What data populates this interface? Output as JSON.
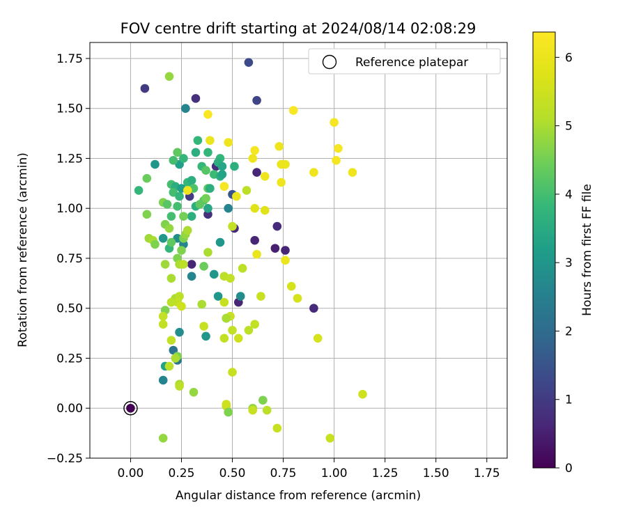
{
  "chart_data": {
    "type": "scatter",
    "title": "FOV centre drift starting at 2024/08/14 02:08:29",
    "xlabel": "Angular distance from reference (arcmin)",
    "ylabel": "Rotation from reference (arcmin)",
    "xlim": [
      -0.2,
      1.85
    ],
    "ylim": [
      -0.25,
      1.83
    ],
    "xticks": [
      0.0,
      0.25,
      0.5,
      0.75,
      1.0,
      1.25,
      1.5,
      1.75
    ],
    "xtick_labels": [
      "0.00",
      "0.25",
      "0.50",
      "0.75",
      "1.00",
      "1.25",
      "1.50",
      "1.75"
    ],
    "yticks": [
      -0.25,
      0.0,
      0.25,
      0.5,
      0.75,
      1.0,
      1.25,
      1.5,
      1.75
    ],
    "ytick_labels": [
      "−0.25",
      "0.00",
      "0.25",
      "0.50",
      "0.75",
      "1.00",
      "1.25",
      "1.50",
      "1.75"
    ],
    "grid": true,
    "legend": {
      "position": "top-right",
      "entries": [
        "Reference platepar"
      ]
    },
    "reference_point": {
      "x": 0.0,
      "y": 0.0,
      "marker": "open-circle",
      "color": "#000000"
    },
    "colorbar": {
      "label": "Hours from first FF file",
      "min": 0,
      "max": 6.37,
      "ticks": [
        0,
        1,
        2,
        3,
        4,
        5,
        6
      ],
      "tick_labels": [
        "0",
        "1",
        "2",
        "3",
        "4",
        "5",
        "6"
      ],
      "colormap": "viridis"
    },
    "points": [
      [
        0.0,
        0.0,
        0.0
      ],
      [
        0.07,
        1.6,
        1.0
      ],
      [
        0.58,
        1.73,
        1.3
      ],
      [
        0.32,
        1.55,
        0.8
      ],
      [
        0.62,
        1.54,
        1.2
      ],
      [
        0.27,
        1.5,
        2.4
      ],
      [
        0.27,
        1.5,
        2.6
      ],
      [
        0.19,
        1.66,
        4.8
      ],
      [
        0.62,
        1.18,
        0.6
      ],
      [
        0.72,
        0.91,
        0.7
      ],
      [
        0.76,
        0.79,
        0.6
      ],
      [
        0.71,
        0.8,
        0.5
      ],
      [
        0.61,
        0.84,
        0.6
      ],
      [
        0.9,
        0.5,
        0.7
      ],
      [
        0.53,
        0.53,
        0.6
      ],
      [
        0.51,
        0.9,
        0.7
      ],
      [
        0.38,
        0.97,
        0.8
      ],
      [
        0.3,
        0.72,
        0.6
      ],
      [
        0.42,
        1.21,
        0.8
      ],
      [
        0.29,
        1.06,
        1.0
      ],
      [
        0.5,
        1.07,
        1.5
      ],
      [
        0.23,
        0.24,
        2.2
      ],
      [
        0.21,
        0.29,
        2.2
      ],
      [
        0.16,
        0.14,
        2.6
      ],
      [
        0.17,
        0.21,
        3.3
      ],
      [
        0.24,
        0.38,
        2.8
      ],
      [
        0.47,
        0.45,
        2.8
      ],
      [
        0.37,
        0.36,
        3.0
      ],
      [
        0.43,
        0.56,
        3.0
      ],
      [
        0.54,
        0.56,
        2.8
      ],
      [
        0.44,
        0.83,
        3.0
      ],
      [
        0.41,
        0.67,
        3.0
      ],
      [
        0.3,
        0.66,
        2.6
      ],
      [
        0.26,
        0.82,
        2.6
      ],
      [
        0.23,
        0.85,
        2.8
      ],
      [
        0.16,
        0.85,
        3.0
      ],
      [
        0.12,
        1.22,
        3.0
      ],
      [
        0.48,
        1.0,
        2.6
      ],
      [
        0.24,
        1.22,
        3.2
      ],
      [
        0.32,
        1.28,
        3.6
      ],
      [
        0.33,
        1.34,
        3.8
      ],
      [
        0.38,
        1.28,
        3.8
      ],
      [
        0.26,
        1.25,
        3.8
      ],
      [
        0.21,
        1.24,
        4.0
      ],
      [
        0.23,
        1.28,
        4.3
      ],
      [
        0.44,
        1.25,
        3.8
      ],
      [
        0.43,
        1.23,
        3.6
      ],
      [
        0.45,
        1.21,
        3.4
      ],
      [
        0.35,
        1.21,
        3.8
      ],
      [
        0.37,
        1.19,
        4.2
      ],
      [
        0.41,
        1.17,
        3.9
      ],
      [
        0.44,
        1.16,
        3.6
      ],
      [
        0.45,
        1.17,
        3.3
      ],
      [
        0.51,
        1.21,
        3.6
      ],
      [
        0.28,
        1.13,
        3.8
      ],
      [
        0.3,
        1.14,
        3.6
      ],
      [
        0.2,
        1.12,
        4.0
      ],
      [
        0.22,
        1.11,
        3.6
      ],
      [
        0.25,
        1.1,
        3.2
      ],
      [
        0.21,
        1.08,
        4.0
      ],
      [
        0.24,
        1.06,
        3.8
      ],
      [
        0.31,
        1.1,
        4.1
      ],
      [
        0.38,
        1.1,
        4.3
      ],
      [
        0.39,
        1.1,
        3.6
      ],
      [
        0.36,
        1.04,
        4.2
      ],
      [
        0.37,
        1.05,
        4.5
      ],
      [
        0.38,
        1.0,
        3.4
      ],
      [
        0.32,
        1.01,
        3.6
      ],
      [
        0.3,
        0.96,
        3.6
      ],
      [
        0.34,
        1.02,
        4.3
      ],
      [
        0.26,
        0.96,
        4.5
      ],
      [
        0.23,
        1.01,
        4.0
      ],
      [
        0.2,
        0.96,
        4.0
      ],
      [
        0.16,
        1.03,
        4.6
      ],
      [
        0.18,
        1.02,
        4.2
      ],
      [
        0.04,
        1.09,
        3.8
      ],
      [
        0.08,
        1.15,
        4.4
      ],
      [
        0.08,
        0.97,
        4.6
      ],
      [
        0.17,
        0.92,
        4.6
      ],
      [
        0.19,
        0.9,
        4.8
      ],
      [
        0.09,
        0.85,
        4.9
      ],
      [
        0.11,
        0.84,
        5.0
      ],
      [
        0.12,
        0.82,
        4.6
      ],
      [
        0.19,
        0.8,
        3.8
      ],
      [
        0.2,
        0.83,
        4.3
      ],
      [
        0.23,
        0.75,
        4.6
      ],
      [
        0.25,
        0.79,
        4.6
      ],
      [
        0.26,
        0.85,
        4.6
      ],
      [
        0.27,
        0.87,
        4.8
      ],
      [
        0.28,
        0.89,
        5.0
      ],
      [
        0.17,
        0.72,
        4.9
      ],
      [
        0.2,
        0.65,
        5.0
      ],
      [
        0.24,
        0.72,
        5.0
      ],
      [
        0.26,
        0.72,
        5.2
      ],
      [
        0.36,
        0.71,
        4.4
      ],
      [
        0.38,
        0.78,
        5.0
      ],
      [
        0.46,
        0.66,
        5.2
      ],
      [
        0.49,
        0.65,
        5.3
      ],
      [
        0.55,
        0.7,
        5.2
      ],
      [
        0.46,
        0.53,
        5.4
      ],
      [
        0.49,
        0.46,
        5.4
      ],
      [
        0.47,
        0.45,
        5.0
      ],
      [
        0.35,
        0.52,
        5.0
      ],
      [
        0.22,
        0.55,
        5.0
      ],
      [
        0.24,
        0.56,
        5.2
      ],
      [
        0.23,
        0.53,
        5.3
      ],
      [
        0.25,
        0.51,
        5.5
      ],
      [
        0.2,
        0.53,
        5.2
      ],
      [
        0.17,
        0.49,
        4.6
      ],
      [
        0.16,
        0.46,
        5.3
      ],
      [
        0.16,
        0.42,
        5.3
      ],
      [
        0.2,
        0.34,
        5.3
      ],
      [
        0.23,
        0.26,
        4.6
      ],
      [
        0.22,
        0.25,
        5.0
      ],
      [
        0.19,
        0.21,
        5.2
      ],
      [
        0.24,
        0.12,
        5.0
      ],
      [
        0.24,
        0.11,
        5.2
      ],
      [
        0.31,
        0.08,
        4.8
      ],
      [
        0.16,
        -0.15,
        4.8
      ],
      [
        0.36,
        0.41,
        5.4
      ],
      [
        0.46,
        0.35,
        5.3
      ],
      [
        0.5,
        0.39,
        5.3
      ],
      [
        0.53,
        0.35,
        5.5
      ],
      [
        0.58,
        0.39,
        5.2
      ],
      [
        0.61,
        0.42,
        5.3
      ],
      [
        0.64,
        0.56,
        5.4
      ],
      [
        0.5,
        0.18,
        5.4
      ],
      [
        0.47,
        0.01,
        5.3
      ],
      [
        0.47,
        0.02,
        5.5
      ],
      [
        0.48,
        -0.02,
        4.6
      ],
      [
        0.6,
        0.0,
        4.8
      ],
      [
        0.6,
        -0.01,
        5.4
      ],
      [
        0.65,
        0.04,
        4.6
      ],
      [
        0.67,
        -0.01,
        5.2
      ],
      [
        0.72,
        -0.1,
        5.4
      ],
      [
        0.98,
        -0.15,
        5.4
      ],
      [
        1.14,
        0.07,
        5.5
      ],
      [
        0.92,
        0.35,
        5.6
      ],
      [
        0.79,
        0.61,
        5.6
      ],
      [
        0.82,
        0.55,
        5.6
      ],
      [
        0.62,
        0.77,
        6.0
      ],
      [
        0.76,
        0.74,
        6.0
      ],
      [
        0.66,
        0.99,
        5.8
      ],
      [
        0.61,
        1.0,
        5.8
      ],
      [
        0.57,
        1.09,
        5.2
      ],
      [
        0.46,
        1.11,
        5.8
      ],
      [
        0.28,
        1.09,
        6.1
      ],
      [
        0.52,
        1.06,
        6.0
      ],
      [
        0.5,
        0.91,
        5.3
      ],
      [
        0.6,
        1.25,
        6.1
      ],
      [
        0.61,
        1.29,
        6.2
      ],
      [
        0.66,
        1.16,
        6.1
      ],
      [
        0.73,
        1.31,
        6.1
      ],
      [
        0.74,
        1.22,
        6.0
      ],
      [
        0.76,
        1.22,
        6.0
      ],
      [
        0.74,
        1.13,
        6.1
      ],
      [
        0.9,
        1.18,
        6.1
      ],
      [
        1.0,
        1.43,
        6.2
      ],
      [
        1.02,
        1.3,
        6.2
      ],
      [
        1.01,
        1.24,
        6.2
      ],
      [
        1.09,
        1.18,
        6.1
      ],
      [
        0.8,
        1.49,
        6.3
      ],
      [
        0.38,
        1.47,
        6.3
      ],
      [
        0.39,
        1.34,
        6.0
      ],
      [
        0.48,
        1.33,
        6.1
      ],
      [
        0.46,
        1.11,
        6.2
      ]
    ]
  }
}
